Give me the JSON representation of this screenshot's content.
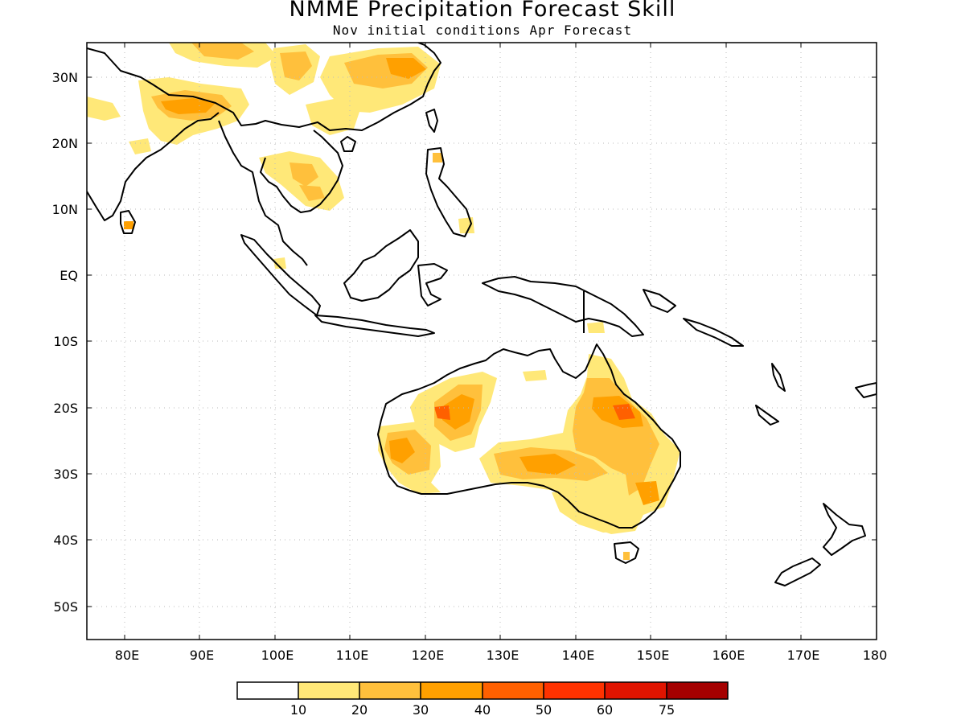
{
  "figure": {
    "title": "NMME Precipitation Forecast Skill",
    "subtitle": "Nov initial conditions  Apr Forecast"
  },
  "map": {
    "lon_range": [
      75,
      180
    ],
    "lat_range": [
      -55,
      35
    ],
    "lat_ticks": [
      {
        "value": 30,
        "label": "30N"
      },
      {
        "value": 20,
        "label": "20N"
      },
      {
        "value": 10,
        "label": "10N"
      },
      {
        "value": 0,
        "label": "EQ"
      },
      {
        "value": -10,
        "label": "10S"
      },
      {
        "value": -20,
        "label": "20S"
      },
      {
        "value": -30,
        "label": "30S"
      },
      {
        "value": -40,
        "label": "40S"
      },
      {
        "value": -50,
        "label": "50S"
      }
    ],
    "lon_ticks": [
      {
        "value": 80,
        "label": "80E"
      },
      {
        "value": 90,
        "label": "90E"
      },
      {
        "value": 100,
        "label": "100E"
      },
      {
        "value": 110,
        "label": "110E"
      },
      {
        "value": 120,
        "label": "120E"
      },
      {
        "value": 130,
        "label": "130E"
      },
      {
        "value": 140,
        "label": "140E"
      },
      {
        "value": 150,
        "label": "150E"
      },
      {
        "value": 160,
        "label": "160E"
      },
      {
        "value": 170,
        "label": "170E"
      },
      {
        "value": 180,
        "label": "180"
      }
    ],
    "grid": "dotted"
  },
  "colorbar": {
    "colors": [
      "#ffffff",
      "#ffe878",
      "#ffc03c",
      "#ffa000",
      "#ff6000",
      "#ff3200",
      "#e11400",
      "#a50000"
    ],
    "labels": [
      "10",
      "20",
      "30",
      "40",
      "50",
      "60",
      "75"
    ]
  }
}
